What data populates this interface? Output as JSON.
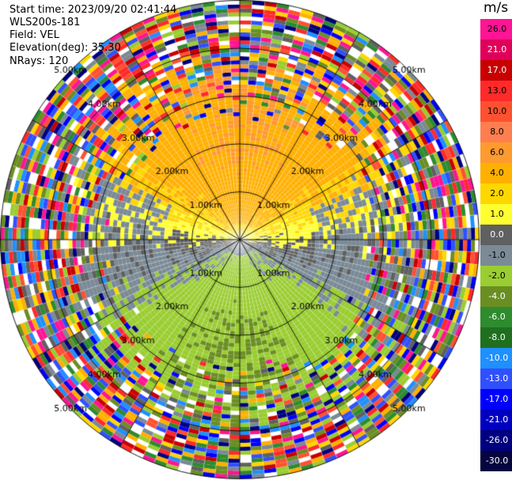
{
  "header": {
    "start_time": "Start time: 2023/09/20 02:41:44",
    "instrument": "WLS200s-181",
    "field": "Field: VEL",
    "elevation": "Elevation(deg): 35.30",
    "nrays": "NRays: 120"
  },
  "chart_data": {
    "type": "heatmap",
    "subtype": "ppi-polar",
    "field": "VEL",
    "units": "m/s",
    "range_rings_km": [
      1,
      2,
      3,
      4,
      5
    ],
    "ring_labels": [
      "1.00km",
      "2.00km",
      "3.00km",
      "4.00km",
      "5.00km"
    ],
    "nrays": 120,
    "elevation_deg": 35.3,
    "max_range_km": 5.0,
    "spokes_deg": [
      0,
      30,
      60,
      90,
      120,
      150,
      180,
      210,
      240,
      270,
      300,
      330
    ],
    "colorbar": {
      "units_label": "m/s",
      "ticks": [
        "26.0",
        "21.0",
        "17.0",
        "13.0",
        "10.0",
        "8.0",
        "6.0",
        "4.0",
        "2.0",
        "1.0",
        "0.0",
        "-1.0",
        "-2.0",
        "-4.0",
        "-6.0",
        "-8.0",
        "-10.0",
        "-13.0",
        "-17.0",
        "-21.0",
        "-26.0",
        "-30.0"
      ],
      "colors": [
        "#ff1493",
        "#e0005a",
        "#c80000",
        "#ff2a2a",
        "#ff5030",
        "#ff7e50",
        "#ff9a30",
        "#ffb000",
        "#ffd700",
        "#ffff30",
        "#606060",
        "#7a8a96",
        "#9acd32",
        "#6b8e23",
        "#2e8b2e",
        "#1f6f1f",
        "#1e90ff",
        "#3050ff",
        "#0000ff",
        "#0000c0",
        "#000080",
        "#050540"
      ]
    },
    "velocity_model": {
      "description": "Approaching (negative) velocities to the south, receding (positive) to the north; wind from the south; noise beyond ~3.3 km",
      "valid_range_km": 3.3,
      "wind_dir_deg": 180,
      "max_speed": 4.0
    }
  }
}
